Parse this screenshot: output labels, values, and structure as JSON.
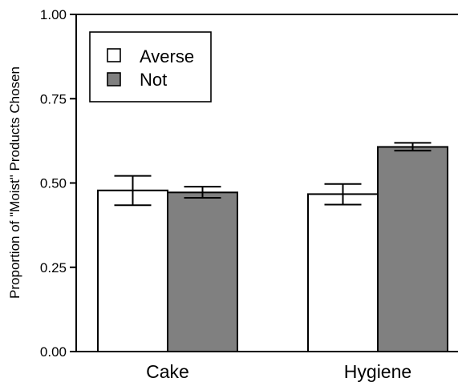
{
  "chart_data": {
    "type": "bar",
    "categories": [
      "Cake",
      "Hygiene"
    ],
    "series": [
      {
        "name": "Averse",
        "color": "#ffffff",
        "values": [
          0.478,
          0.467
        ],
        "error_low": [
          0.434,
          0.436
        ],
        "error_high": [
          0.521,
          0.497
        ]
      },
      {
        "name": "Not",
        "color": "#808080",
        "values": [
          0.472,
          0.607
        ],
        "error_low": [
          0.456,
          0.596
        ],
        "error_high": [
          0.489,
          0.619
        ]
      }
    ],
    "ylabel": "Proportion of \"Moist\" Products Chosen",
    "xlabel": "",
    "ylim": [
      0,
      1
    ],
    "yticks": [
      "0.00",
      "0.25",
      "0.50",
      "0.75",
      "1.00"
    ],
    "legend_position": "top-left",
    "grid": false
  }
}
